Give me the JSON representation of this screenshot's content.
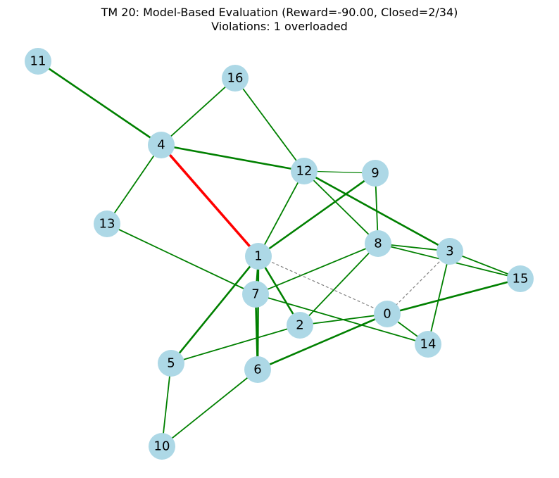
{
  "title": {
    "line1": "TM 20: Model-Based Evaluation (Reward=-90.00, Closed=2/34)",
    "line2": "Violations: 1 overloaded"
  },
  "colors": {
    "node_fill": "#add8e6",
    "normal_edge": "#008000",
    "overloaded_edge": "#ff0000",
    "open_edge": "#808080"
  },
  "nodes": [
    {
      "id": "0",
      "label": "0"
    },
    {
      "id": "1",
      "label": "1"
    },
    {
      "id": "2",
      "label": "2"
    },
    {
      "id": "3",
      "label": "3"
    },
    {
      "id": "4",
      "label": "4"
    },
    {
      "id": "5",
      "label": "5"
    },
    {
      "id": "6",
      "label": "6"
    },
    {
      "id": "7",
      "label": "7"
    },
    {
      "id": "8",
      "label": "8"
    },
    {
      "id": "9",
      "label": "9"
    },
    {
      "id": "10",
      "label": "10"
    },
    {
      "id": "11",
      "label": "11"
    },
    {
      "id": "12",
      "label": "12"
    },
    {
      "id": "13",
      "label": "13"
    },
    {
      "id": "14",
      "label": "14"
    },
    {
      "id": "15",
      "label": "15"
    },
    {
      "id": "16",
      "label": "16"
    }
  ],
  "edges": [
    {
      "from": "11",
      "to": "4",
      "status": "normal",
      "weight": "heavy"
    },
    {
      "from": "4",
      "to": "16",
      "status": "normal",
      "weight": "normal"
    },
    {
      "from": "16",
      "to": "12",
      "status": "normal",
      "weight": "normal"
    },
    {
      "from": "4",
      "to": "12",
      "status": "normal",
      "weight": "heavy"
    },
    {
      "from": "4",
      "to": "1",
      "status": "overloaded",
      "weight": "overloaded"
    },
    {
      "from": "4",
      "to": "13",
      "status": "normal",
      "weight": "normal"
    },
    {
      "from": "13",
      "to": "7",
      "status": "normal",
      "weight": "normal"
    },
    {
      "from": "12",
      "to": "9",
      "status": "normal",
      "weight": "thin"
    },
    {
      "from": "12",
      "to": "1",
      "status": "normal",
      "weight": "normal"
    },
    {
      "from": "12",
      "to": "8",
      "status": "normal",
      "weight": "normal"
    },
    {
      "from": "12",
      "to": "3",
      "status": "normal",
      "weight": "heavy"
    },
    {
      "from": "9",
      "to": "1",
      "status": "normal",
      "weight": "heavy"
    },
    {
      "from": "9",
      "to": "8",
      "status": "normal",
      "weight": "normal"
    },
    {
      "from": "8",
      "to": "3",
      "status": "normal",
      "weight": "normal"
    },
    {
      "from": "8",
      "to": "15",
      "status": "normal",
      "weight": "normal"
    },
    {
      "from": "8",
      "to": "7",
      "status": "normal",
      "weight": "normal"
    },
    {
      "from": "8",
      "to": "2",
      "status": "normal",
      "weight": "normal"
    },
    {
      "from": "3",
      "to": "15",
      "status": "normal",
      "weight": "normal"
    },
    {
      "from": "3",
      "to": "14",
      "status": "normal",
      "weight": "normal"
    },
    {
      "from": "3",
      "to": "0",
      "status": "open",
      "weight": "dashed"
    },
    {
      "from": "15",
      "to": "0",
      "status": "normal",
      "weight": "heavy"
    },
    {
      "from": "0",
      "to": "14",
      "status": "normal",
      "weight": "normal"
    },
    {
      "from": "0",
      "to": "6",
      "status": "normal",
      "weight": "heavy"
    },
    {
      "from": "0",
      "to": "2",
      "status": "normal",
      "weight": "normal"
    },
    {
      "from": "1",
      "to": "0",
      "status": "open",
      "weight": "dashed"
    },
    {
      "from": "1",
      "to": "2",
      "status": "normal",
      "weight": "heavy"
    },
    {
      "from": "1",
      "to": "7",
      "status": "normal",
      "weight": "normal"
    },
    {
      "from": "1",
      "to": "5",
      "status": "normal",
      "weight": "heavy"
    },
    {
      "from": "1",
      "to": "6",
      "status": "normal",
      "weight": "heavy"
    },
    {
      "from": "7",
      "to": "6",
      "status": "normal",
      "weight": "heavy"
    },
    {
      "from": "7",
      "to": "14",
      "status": "normal",
      "weight": "normal"
    },
    {
      "from": "2",
      "to": "5",
      "status": "normal",
      "weight": "normal"
    },
    {
      "from": "5",
      "to": "10",
      "status": "normal",
      "weight": "normal"
    },
    {
      "from": "6",
      "to": "10",
      "status": "normal",
      "weight": "normal"
    }
  ]
}
